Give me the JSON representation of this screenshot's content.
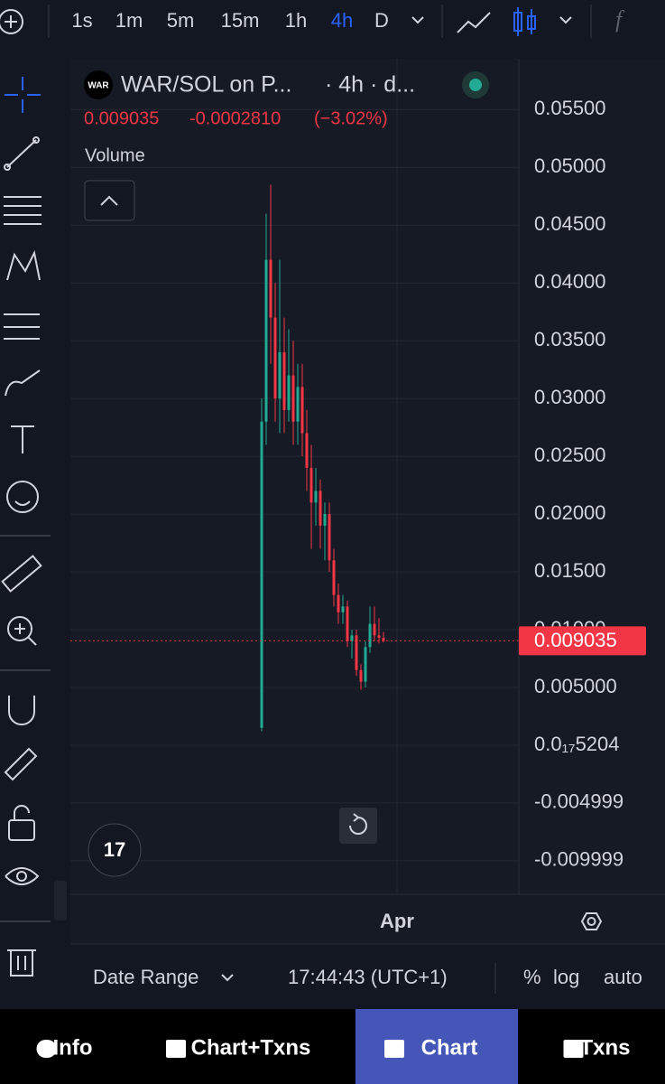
{
  "toolbar": {
    "intervals": [
      "1s",
      "1m",
      "5m",
      "15m",
      "1h",
      "4h",
      "D"
    ],
    "active_interval": "4h"
  },
  "legend": {
    "logo": "WAR",
    "symbol": "WAR/SOL on P...",
    "details": "· 4h · d...",
    "change": "-0.0002810",
    "change_pct": "(−3.02%)",
    "volume": "Volume"
  },
  "chart_data": {
    "type": "candlestick",
    "x": [
      0,
      1,
      2,
      3,
      4,
      5,
      6,
      7,
      8,
      9,
      10,
      11,
      12,
      13,
      14,
      15,
      16,
      17,
      18,
      19,
      20,
      21,
      22,
      23,
      24,
      25,
      26,
      27
    ],
    "open": [
      0.0015,
      0.028,
      0.042,
      0.037,
      0.03,
      0.034,
      0.029,
      0.032,
      0.028,
      0.031,
      0.027,
      0.024,
      0.021,
      0.022,
      0.019,
      0.02,
      0.016,
      0.013,
      0.0115,
      0.012,
      0.009,
      0.0095,
      0.0065,
      0.0055,
      0.0085,
      0.0105,
      0.0095,
      0.0093
    ],
    "high": [
      0.03,
      0.046,
      0.0485,
      0.04,
      0.042,
      0.037,
      0.036,
      0.035,
      0.033,
      0.033,
      0.029,
      0.026,
      0.024,
      0.023,
      0.021,
      0.021,
      0.017,
      0.014,
      0.013,
      0.0125,
      0.01,
      0.01,
      0.007,
      0.009,
      0.012,
      0.012,
      0.011,
      0.0098
    ],
    "low": [
      0.0012,
      0.026,
      0.033,
      0.028,
      0.027,
      0.027,
      0.028,
      0.026,
      0.026,
      0.025,
      0.022,
      0.017,
      0.019,
      0.017,
      0.016,
      0.015,
      0.012,
      0.0105,
      0.0105,
      0.0085,
      0.0075,
      0.006,
      0.0048,
      0.005,
      0.008,
      0.009,
      0.0088,
      0.0089
    ],
    "close": [
      0.028,
      0.042,
      0.037,
      0.03,
      0.034,
      0.029,
      0.032,
      0.028,
      0.031,
      0.027,
      0.024,
      0.021,
      0.022,
      0.019,
      0.02,
      0.016,
      0.013,
      0.0115,
      0.012,
      0.009,
      0.0095,
      0.0065,
      0.0055,
      0.0085,
      0.0105,
      0.0095,
      0.0093,
      0.009035
    ],
    "up_color": "#22ab94",
    "down_color": "#f23645",
    "last_price": 0.009035,
    "xlim": [
      -42.4,
      57
    ],
    "xticks": [
      {
        "value": 30,
        "label": "Apr"
      }
    ],
    "ylim": [
      -0.0129,
      0.0594
    ],
    "yticks": [
      {
        "value": 0.055,
        "label": "0.05500"
      },
      {
        "value": 0.05,
        "label": "0.05000"
      },
      {
        "value": 0.045,
        "label": "0.04500"
      },
      {
        "value": 0.04,
        "label": "0.04000"
      },
      {
        "value": 0.035,
        "label": "0.03500"
      },
      {
        "value": 0.03,
        "label": "0.03000"
      },
      {
        "value": 0.025,
        "label": "0.02500"
      },
      {
        "value": 0.02,
        "label": "0.02000"
      },
      {
        "value": 0.015,
        "label": "0.01500"
      },
      {
        "value": 0.01,
        "label": "0.01000"
      },
      {
        "value": 0.005,
        "label": "0.005000"
      },
      {
        "value": 0,
        "label": "0.0₁₇5204"
      },
      {
        "value": -0.004999,
        "label": "-0.004999"
      },
      {
        "value": -0.009999,
        "label": "-0.009999"
      }
    ],
    "grid": true
  },
  "footer": {
    "date_range": "Date Range",
    "time": "17:44:43 (UTC+1)",
    "options": [
      "%",
      "log",
      "auto"
    ]
  },
  "nav": {
    "tabs": [
      "Info",
      "Chart+Txns",
      "Chart",
      "Txns"
    ],
    "active_tab": "Chart"
  }
}
